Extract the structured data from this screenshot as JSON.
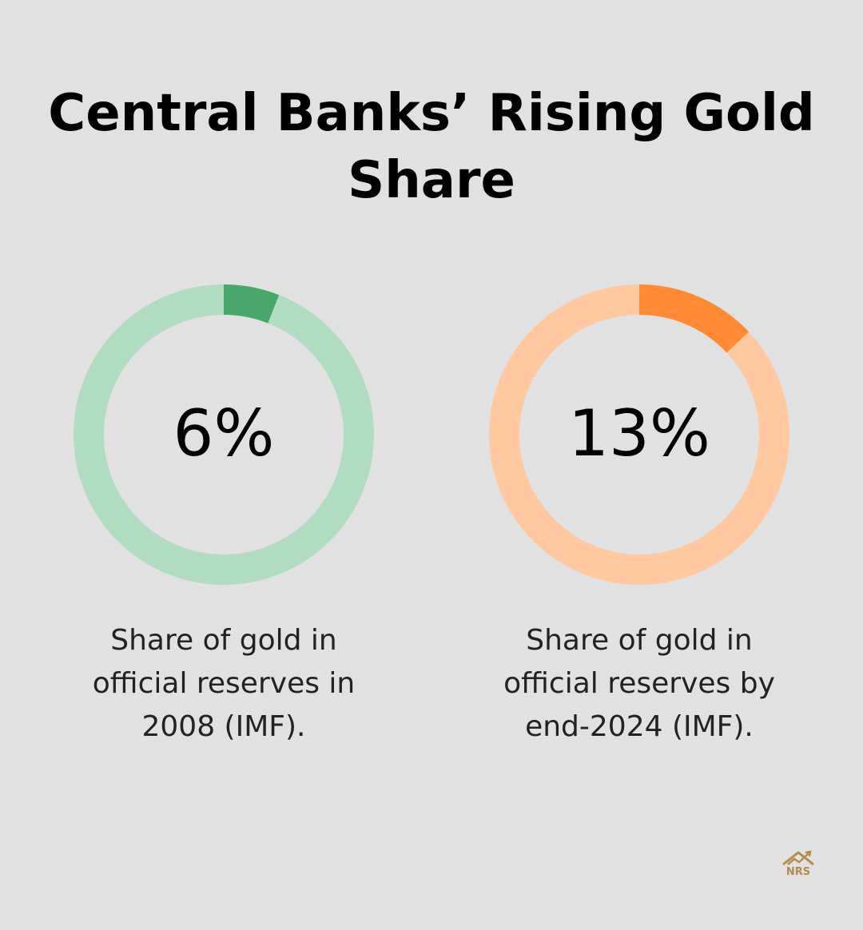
{
  "title": "Central Banks’ Rising Gold Share",
  "chart_data": [
    {
      "type": "pie",
      "variant": "donut",
      "value_label": "6%",
      "value": 6,
      "total": 100,
      "caption": "Share of gold in official reserves in 2008 (IMF).",
      "colors": {
        "filled": "#4aa76b",
        "track": "#b2dcc2"
      }
    },
    {
      "type": "pie",
      "variant": "donut",
      "value_label": "13%",
      "value": 13,
      "total": 100,
      "caption": "Share of gold in official reserves by end-2024 (IMF).",
      "colors": {
        "filled": "#fe8a35",
        "track": "#fec8a0"
      }
    }
  ],
  "logo": {
    "text": "NRS",
    "color": "#b58a4f"
  }
}
